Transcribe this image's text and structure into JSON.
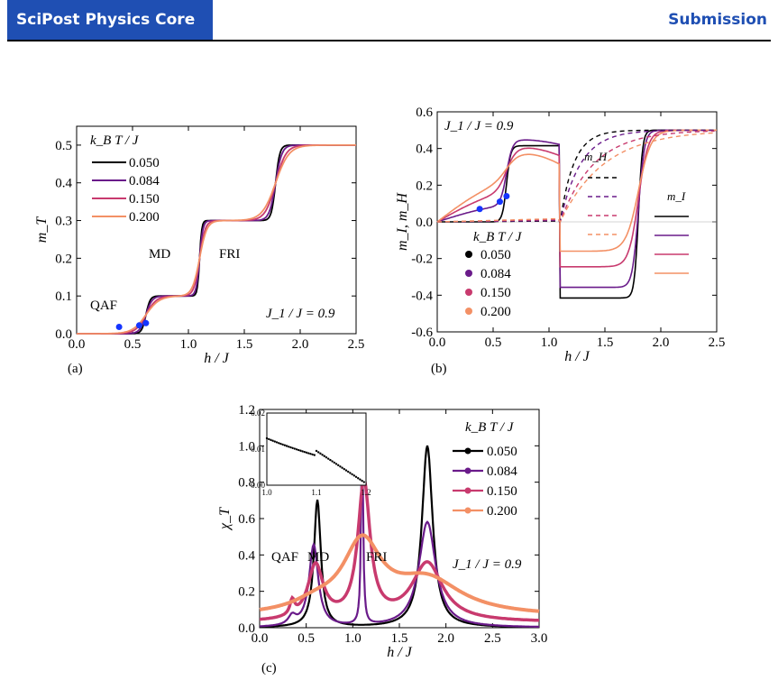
{
  "header": {
    "journal": "SciPost Physics Core",
    "status": "Submission"
  },
  "panel_a": {
    "caption": "(a)",
    "xlabel": "h / J",
    "ylabel": "m_T",
    "legend_title": "k_B T / J",
    "regions": [
      "QAF",
      "MD",
      "FRI"
    ],
    "annotation": "J_1 / J = 0.9",
    "xticks": [
      "0.0",
      "0.5",
      "1.0",
      "1.5",
      "2.0",
      "2.5"
    ],
    "yticks": [
      "0.0",
      "0.1",
      "0.2",
      "0.3",
      "0.4",
      "0.5"
    ]
  },
  "panel_b": {
    "caption": "(b)",
    "xlabel": "h / J",
    "ylabel": "m_I, m_H",
    "legend_title": "k_B T / J",
    "annotation": "J_1 / J = 0.9",
    "mH_label": "m_H",
    "mI_label": "m_I",
    "xticks": [
      "0.0",
      "0.5",
      "1.0",
      "1.5",
      "2.0",
      "2.5"
    ],
    "yticks": [
      "-0.6",
      "-0.4",
      "-0.2",
      "0.0",
      "0.2",
      "0.4",
      "0.6"
    ]
  },
  "panel_c": {
    "caption": "(c)",
    "xlabel": "h / J",
    "ylabel": "χ_T",
    "legend_title": "k_B T / J",
    "regions": [
      "QAF",
      "MD",
      "FRI"
    ],
    "annotation": "J_1 / J = 0.9",
    "xticks": [
      "0.0",
      "0.5",
      "1.0",
      "1.5",
      "2.0",
      "2.5",
      "3.0"
    ],
    "yticks": [
      "0.0",
      "0.2",
      "0.4",
      "0.6",
      "0.8",
      "1.0",
      "1.2"
    ],
    "inset_xticks": [
      "1.0",
      "1.1",
      "1.2"
    ],
    "inset_yticks": [
      "0.00",
      "0.01",
      "0.02"
    ]
  },
  "chart_data": [
    {
      "type": "line",
      "panel": "a",
      "xlabel": "h / J",
      "ylabel": "m_T",
      "xlim": [
        0,
        2.5
      ],
      "ylim": [
        0,
        0.55
      ],
      "series": [
        {
          "name": "0.050",
          "color": "#000000"
        },
        {
          "name": "0.084",
          "color": "#6a1b8a"
        },
        {
          "name": "0.150",
          "color": "#c83a6e"
        },
        {
          "name": "0.200",
          "color": "#f39065"
        }
      ]
    },
    {
      "type": "line",
      "panel": "b",
      "xlabel": "h / J",
      "ylabel": "m_I, m_H",
      "xlim": [
        0,
        2.5
      ],
      "ylim": [
        -0.6,
        0.6
      ],
      "series": [
        {
          "name": "0.050",
          "color": "#000000"
        },
        {
          "name": "0.084",
          "color": "#6a1b8a"
        },
        {
          "name": "0.150",
          "color": "#c83a6e"
        },
        {
          "name": "0.200",
          "color": "#f39065"
        }
      ]
    },
    {
      "type": "scatter",
      "panel": "c",
      "xlabel": "h / J",
      "ylabel": "χ_T",
      "xlim": [
        0,
        3
      ],
      "ylim": [
        0,
        1.2
      ],
      "series": [
        {
          "name": "0.050",
          "color": "#000000"
        },
        {
          "name": "0.084",
          "color": "#6a1b8a"
        },
        {
          "name": "0.150",
          "color": "#c83a6e"
        },
        {
          "name": "0.200",
          "color": "#f39065"
        }
      ]
    }
  ]
}
